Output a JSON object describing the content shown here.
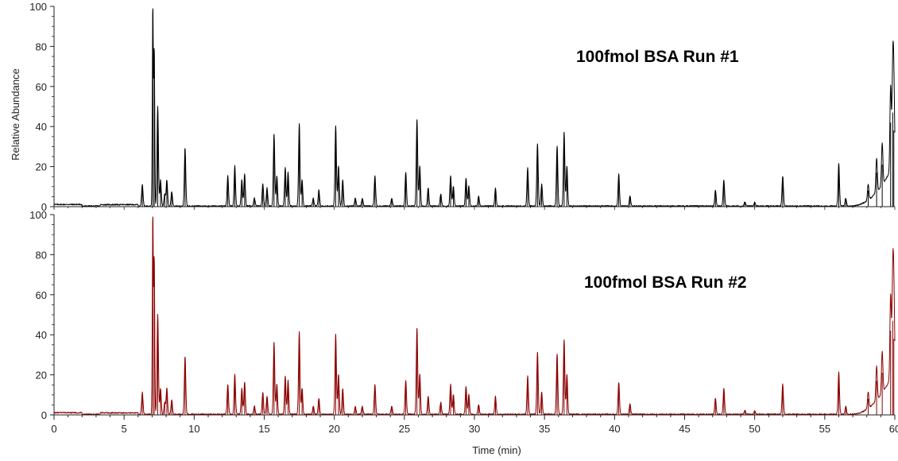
{
  "chart_data": [
    {
      "type": "line",
      "title": "100fmol BSA Run #1",
      "ylabel": "Relative Abundance",
      "xlabel": "",
      "xlim": [
        0,
        60
      ],
      "ylim": [
        0,
        100
      ],
      "y_ticks": [
        "0",
        "20",
        "40",
        "60",
        "80",
        "100"
      ],
      "x_ticks": [],
      "color": "#000000",
      "peaks": [
        [
          6.3,
          11
        ],
        [
          7.05,
          99
        ],
        [
          7.15,
          78
        ],
        [
          7.4,
          50
        ],
        [
          7.6,
          13
        ],
        [
          7.9,
          6
        ],
        [
          8.05,
          13
        ],
        [
          8.4,
          7
        ],
        [
          9.35,
          29
        ],
        [
          12.4,
          15
        ],
        [
          12.9,
          20
        ],
        [
          13.4,
          13
        ],
        [
          13.6,
          16
        ],
        [
          14.3,
          4
        ],
        [
          14.9,
          11
        ],
        [
          15.2,
          9
        ],
        [
          15.7,
          36
        ],
        [
          15.9,
          15
        ],
        [
          16.5,
          19
        ],
        [
          16.7,
          17
        ],
        [
          17.5,
          41
        ],
        [
          17.7,
          13
        ],
        [
          18.5,
          4
        ],
        [
          18.9,
          8
        ],
        [
          20.1,
          40
        ],
        [
          20.3,
          20
        ],
        [
          20.6,
          13
        ],
        [
          21.5,
          4
        ],
        [
          22,
          4
        ],
        [
          22.9,
          15
        ],
        [
          24.1,
          4
        ],
        [
          25.1,
          17
        ],
        [
          25.9,
          43
        ],
        [
          26.1,
          20
        ],
        [
          26.7,
          9
        ],
        [
          27.6,
          6
        ],
        [
          28.3,
          15
        ],
        [
          28.5,
          10
        ],
        [
          29.4,
          14
        ],
        [
          29.6,
          10
        ],
        [
          30.3,
          5
        ],
        [
          31.5,
          9
        ],
        [
          33.8,
          19
        ],
        [
          34.5,
          31
        ],
        [
          34.8,
          11
        ],
        [
          35.9,
          30
        ],
        [
          36.4,
          37
        ],
        [
          36.6,
          20
        ],
        [
          40.3,
          16
        ],
        [
          41.1,
          5
        ],
        [
          47.2,
          8
        ],
        [
          47.8,
          13
        ],
        [
          49.3,
          2
        ],
        [
          50,
          2
        ],
        [
          52,
          15
        ],
        [
          56,
          21
        ],
        [
          56.5,
          4
        ],
        [
          58.1,
          8
        ],
        [
          58.7,
          17
        ],
        [
          59.1,
          21
        ],
        [
          59.7,
          42
        ],
        [
          59.85,
          47
        ],
        [
          59.93,
          38
        ]
      ]
    },
    {
      "type": "line",
      "title": "100fmol BSA Run #2",
      "ylabel": "",
      "xlabel": "Time (min)",
      "xlim": [
        0,
        60
      ],
      "ylim": [
        0,
        100
      ],
      "y_ticks": [
        "0",
        "20",
        "40",
        "60",
        "80",
        "100"
      ],
      "x_ticks": [
        "0",
        "5",
        "10",
        "15",
        "20",
        "25",
        "30",
        "35",
        "40",
        "45",
        "50",
        "55",
        "60"
      ],
      "color": "#8b0000",
      "peaks": [
        [
          6.3,
          11
        ],
        [
          7.05,
          99
        ],
        [
          7.15,
          78
        ],
        [
          7.4,
          50
        ],
        [
          7.6,
          13
        ],
        [
          7.9,
          6
        ],
        [
          8.05,
          13
        ],
        [
          8.4,
          7
        ],
        [
          9.35,
          29
        ],
        [
          12.4,
          15
        ],
        [
          12.9,
          20
        ],
        [
          13.4,
          13
        ],
        [
          13.6,
          16
        ],
        [
          14.3,
          4
        ],
        [
          14.9,
          11
        ],
        [
          15.2,
          9
        ],
        [
          15.7,
          36
        ],
        [
          15.9,
          15
        ],
        [
          16.5,
          19
        ],
        [
          16.7,
          17
        ],
        [
          17.5,
          41
        ],
        [
          17.7,
          13
        ],
        [
          18.5,
          4
        ],
        [
          18.9,
          8
        ],
        [
          20.1,
          40
        ],
        [
          20.3,
          20
        ],
        [
          20.6,
          13
        ],
        [
          21.5,
          4
        ],
        [
          22,
          4
        ],
        [
          22.9,
          15
        ],
        [
          24.1,
          4
        ],
        [
          25.1,
          17
        ],
        [
          25.9,
          43
        ],
        [
          26.1,
          20
        ],
        [
          26.7,
          9
        ],
        [
          27.6,
          6
        ],
        [
          28.3,
          15
        ],
        [
          28.5,
          10
        ],
        [
          29.4,
          14
        ],
        [
          29.6,
          10
        ],
        [
          30.3,
          5
        ],
        [
          31.5,
          9
        ],
        [
          33.8,
          19
        ],
        [
          34.5,
          31
        ],
        [
          34.8,
          11
        ],
        [
          35.9,
          30
        ],
        [
          36.4,
          37
        ],
        [
          36.6,
          20
        ],
        [
          40.3,
          16
        ],
        [
          41.1,
          5
        ],
        [
          47.2,
          8
        ],
        [
          47.8,
          13
        ],
        [
          49.3,
          2
        ],
        [
          50,
          2
        ],
        [
          52,
          15
        ],
        [
          56,
          21
        ],
        [
          56.5,
          4
        ],
        [
          58.1,
          8
        ],
        [
          58.7,
          17
        ],
        [
          59.1,
          21
        ],
        [
          59.7,
          42
        ],
        [
          59.85,
          47
        ],
        [
          59.93,
          38
        ]
      ]
    }
  ]
}
